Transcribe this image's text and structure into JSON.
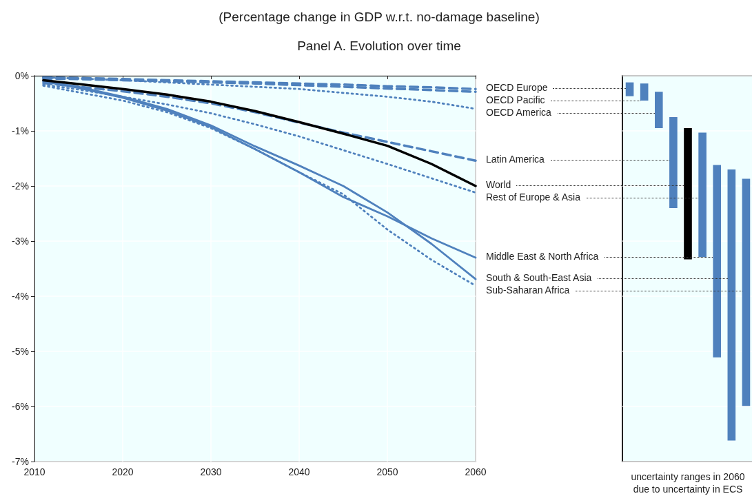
{
  "chart_data": [
    {
      "type": "line",
      "title": "(Percentage change in GDP w.r.t. no-damage baseline)",
      "subtitle": "Panel A. Evolution over time",
      "x": [
        2011,
        2015,
        2020,
        2025,
        2030,
        2035,
        2040,
        2045,
        2050,
        2055,
        2060
      ],
      "xlim": [
        2010,
        2060
      ],
      "xticks": [
        2010,
        2020,
        2030,
        2040,
        2050,
        2060
      ],
      "ylim": [
        -7,
        0
      ],
      "yticks": [
        {
          "value": -7,
          "label": "-7%"
        },
        {
          "value": -6,
          "label": "-6%"
        },
        {
          "value": -5,
          "label": "-5%"
        },
        {
          "value": -4,
          "label": "-4%"
        },
        {
          "value": -3,
          "label": "-3%"
        },
        {
          "value": -2,
          "label": "-2%"
        },
        {
          "value": -1,
          "label": "-1%"
        },
        {
          "value": 0,
          "label": "0%"
        }
      ],
      "grid": true,
      "legend": false,
      "marker": "none",
      "series": [
        {
          "name": "OECD Europe",
          "color": "#4f81bd",
          "line_style": "dashed",
          "values": [
            -0.03,
            -0.04,
            -0.06,
            -0.08,
            -0.1,
            -0.12,
            -0.14,
            -0.16,
            -0.19,
            -0.21,
            -0.24
          ]
        },
        {
          "name": "OECD Pacific",
          "color": "#4f81bd",
          "line_style": "dashed",
          "values": [
            -0.05,
            -0.06,
            -0.08,
            -0.1,
            -0.12,
            -0.14,
            -0.17,
            -0.2,
            -0.23,
            -0.26,
            -0.29
          ]
        },
        {
          "name": "OECD America",
          "color": "#4f81bd",
          "line_style": "dotted",
          "values": [
            -0.03,
            -0.05,
            -0.08,
            -0.12,
            -0.16,
            -0.2,
            -0.24,
            -0.31,
            -0.38,
            -0.47,
            -0.6
          ]
        },
        {
          "name": "Latin America",
          "color": "#4f81bd",
          "line_style": "dashed",
          "values": [
            -0.13,
            -0.2,
            -0.28,
            -0.38,
            -0.5,
            -0.66,
            -0.85,
            -1.03,
            -1.2,
            -1.37,
            -1.54
          ]
        },
        {
          "name": "World",
          "color": "#000000",
          "line_style": "solid",
          "values": [
            -0.08,
            -0.15,
            -0.24,
            -0.34,
            -0.47,
            -0.64,
            -0.84,
            -1.05,
            -1.27,
            -1.6,
            -2.0
          ]
        },
        {
          "name": "Rest of Europe & Asia",
          "color": "#4f81bd",
          "line_style": "dotted",
          "values": [
            -0.16,
            -0.25,
            -0.38,
            -0.52,
            -0.68,
            -0.88,
            -1.1,
            -1.35,
            -1.6,
            -1.86,
            -2.12
          ]
        },
        {
          "name": "Middle East & North Africa",
          "color": "#4f81bd",
          "line_style": "solid",
          "values": [
            -0.1,
            -0.22,
            -0.4,
            -0.63,
            -0.93,
            -1.33,
            -1.75,
            -2.2,
            -2.55,
            -2.95,
            -3.3
          ]
        },
        {
          "name": "South & South-East Asia",
          "color": "#4f81bd",
          "line_style": "solid",
          "values": [
            -0.1,
            -0.2,
            -0.38,
            -0.6,
            -0.9,
            -1.28,
            -1.63,
            -2.0,
            -2.48,
            -3.05,
            -3.69
          ]
        },
        {
          "name": "Sub-Saharan Africa",
          "color": "#4f81bd",
          "line_style": "dotted",
          "values": [
            -0.18,
            -0.3,
            -0.45,
            -0.66,
            -0.95,
            -1.33,
            -1.75,
            -2.15,
            -2.79,
            -3.34,
            -3.81
          ]
        }
      ]
    },
    {
      "type": "bar",
      "xlabel": "uncertainty ranges in 2060\ndue to uncertainty in ECS",
      "categories": [
        null,
        null,
        null,
        null,
        null,
        null,
        null,
        null,
        null
      ],
      "base": [
        -0.12,
        -0.14,
        -0.29,
        -0.75,
        -0.95,
        -1.03,
        -1.62,
        -1.7,
        -1.87
      ],
      "values": [
        -0.25,
        -0.31,
        -0.66,
        -1.65,
        -2.38,
        -2.26,
        -3.49,
        -4.92,
        -4.12
      ],
      "colors": [
        "#4f81bd",
        "#4f81bd",
        "#4f81bd",
        "#4f81bd",
        "#000000",
        "#4f81bd",
        "#4f81bd",
        "#4f81bd",
        "#4f81bd"
      ],
      "ylim": [
        -7,
        0
      ],
      "yticks": [
        -7,
        -6,
        -5,
        -4,
        -3,
        -2,
        -1,
        0
      ],
      "tick_labels": false,
      "grid": "y"
    }
  ]
}
